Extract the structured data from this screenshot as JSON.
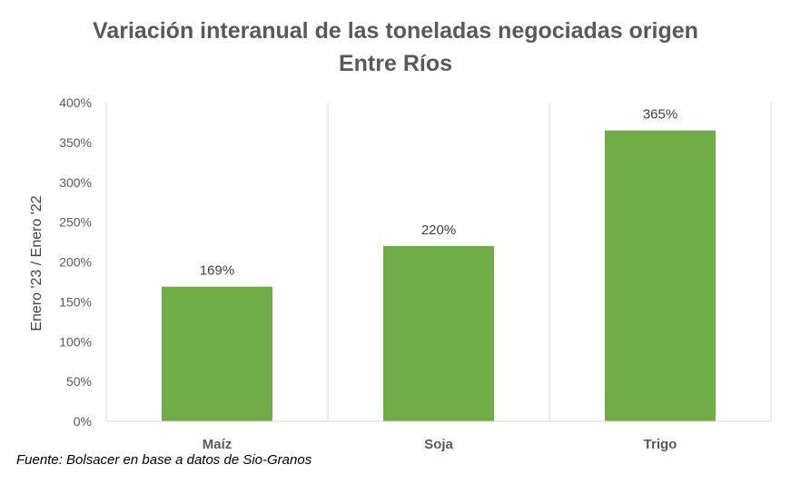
{
  "chart_data": {
    "type": "bar",
    "title": "Variación interanual de las toneladas negociadas origen",
    "subtitle": "Entre Ríos",
    "xlabel": "",
    "ylabel": "Enero '23 / Enero '22",
    "categories": [
      "Maíz",
      "Soja",
      "Trigo"
    ],
    "values": [
      169,
      220,
      365
    ],
    "data_labels": [
      "169%",
      "220%",
      "365%"
    ],
    "ylim": [
      0,
      400
    ],
    "yticks": [
      0,
      50,
      100,
      150,
      200,
      250,
      300,
      350,
      400
    ],
    "ytick_labels": [
      "0%",
      "50%",
      "100%",
      "150%",
      "200%",
      "250%",
      "300%",
      "350%",
      "400%"
    ],
    "bar_color": "#70AD47",
    "grid": "vertical separators between categories",
    "legend": "none"
  },
  "source": "Fuente: Bolsacer en base a datos de Sio-Granos"
}
